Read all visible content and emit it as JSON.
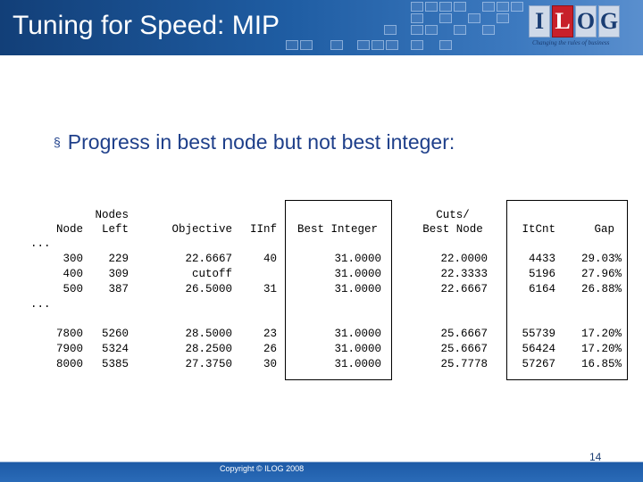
{
  "slide": {
    "title": "Tuning for Speed: MIP",
    "bullet": "Progress in best node but not best integer:",
    "bullet_marker": "§",
    "logo_letters": [
      "I",
      "L",
      "O",
      "G"
    ],
    "tagline": "Changing the rules of business",
    "copyright": "Copyright © ILOG 2008",
    "page_number": "14"
  },
  "table": {
    "header_top": {
      "nodes_left": "Nodes",
      "cuts": "Cuts/"
    },
    "headers": {
      "node": "Node",
      "left": "Left",
      "objective": "Objective",
      "iinf": "IInf",
      "best_integer": "Best Integer",
      "best_node": "Best Node",
      "itcnt": "ItCnt",
      "gap": "Gap"
    },
    "ellipsis": "...",
    "group1": [
      {
        "node": "300",
        "left": "229",
        "objective": "22.6667",
        "iinf": "40",
        "best_integer": "31.0000",
        "best_node": "22.0000",
        "itcnt": "4433",
        "gap": "29.03%"
      },
      {
        "node": "400",
        "left": "309",
        "objective": "cutoff",
        "iinf": "",
        "best_integer": "31.0000",
        "best_node": "22.3333",
        "itcnt": "5196",
        "gap": "27.96%"
      },
      {
        "node": "500",
        "left": "387",
        "objective": "26.5000",
        "iinf": "31",
        "best_integer": "31.0000",
        "best_node": "22.6667",
        "itcnt": "6164",
        "gap": "26.88%"
      }
    ],
    "group2": [
      {
        "node": "7800",
        "left": "5260",
        "objective": "28.5000",
        "iinf": "23",
        "best_integer": "31.0000",
        "best_node": "25.6667",
        "itcnt": "55739",
        "gap": "17.20%"
      },
      {
        "node": "7900",
        "left": "5324",
        "objective": "28.2500",
        "iinf": "26",
        "best_integer": "31.0000",
        "best_node": "25.6667",
        "itcnt": "56424",
        "gap": "17.20%"
      },
      {
        "node": "8000",
        "left": "5385",
        "objective": "27.3750",
        "iinf": "30",
        "best_integer": "31.0000",
        "best_node": "25.7778",
        "itcnt": "57267",
        "gap": "16.85%"
      }
    ]
  }
}
